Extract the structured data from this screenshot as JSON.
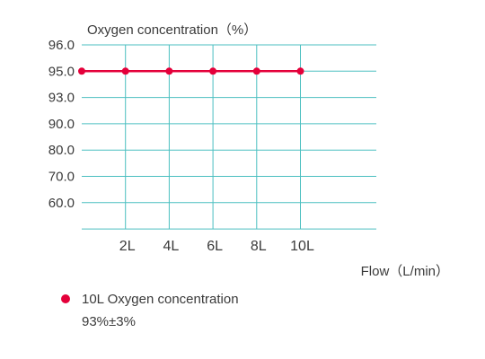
{
  "chart_data": {
    "type": "line",
    "title": "Oxygen concentration（%）",
    "xlabel": "Flow（L/min）",
    "ylabel": "",
    "y_ticks": [
      "96.0",
      "95.0",
      "93.0",
      "90.0",
      "80.0",
      "70.0",
      "60.0"
    ],
    "x_ticks": [
      "2L",
      "4L",
      "6L",
      "8L",
      "10L"
    ],
    "grid": true,
    "series": [
      {
        "x": [
          0,
          2,
          4,
          6,
          8,
          10
        ],
        "values": [
          95.0,
          95.0,
          95.0,
          95.0,
          95.0,
          95.0
        ]
      }
    ]
  },
  "legend": {
    "label": "10L   Oxygen concentration",
    "note": "93%±3%"
  },
  "colors": {
    "series": "#e4003a",
    "grid": "#4bbfc0",
    "text": "#3a3a3a"
  }
}
